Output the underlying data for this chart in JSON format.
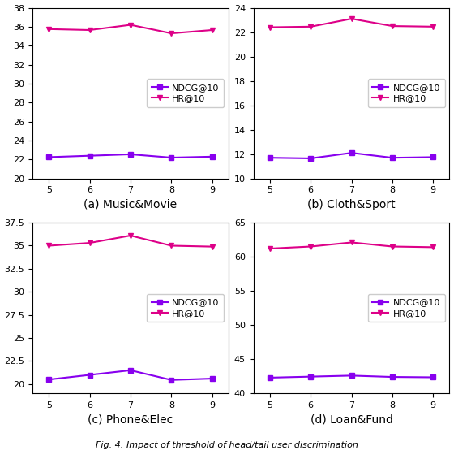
{
  "x": [
    5,
    6,
    7,
    8,
    9
  ],
  "panels": [
    {
      "title": "(a) Music&Movie",
      "ndcg": [
        22.25,
        22.4,
        22.55,
        22.2,
        22.3
      ],
      "hr": [
        35.75,
        35.65,
        36.2,
        35.3,
        35.65
      ],
      "ylim": [
        20,
        38
      ],
      "yticks": [
        20,
        22,
        24,
        26,
        28,
        30,
        32,
        34,
        36,
        38
      ]
    },
    {
      "title": "(b) Cloth&Sport",
      "ndcg": [
        11.7,
        11.65,
        12.1,
        11.7,
        11.75
      ],
      "hr": [
        22.4,
        22.45,
        23.1,
        22.5,
        22.45
      ],
      "ylim": [
        10,
        24
      ],
      "yticks": [
        10,
        12,
        14,
        16,
        18,
        20,
        22,
        24
      ]
    },
    {
      "title": "(c) Phone&Elec",
      "ndcg": [
        20.5,
        21.0,
        21.5,
        20.45,
        20.6
      ],
      "hr": [
        35.0,
        35.3,
        36.1,
        35.0,
        34.9
      ],
      "ylim": [
        19,
        37.5
      ],
      "yticks": [
        20.0,
        22.5,
        25.0,
        27.5,
        30.0,
        32.5,
        35.0,
        37.5
      ]
    },
    {
      "title": "(d) Loan&Fund",
      "ndcg": [
        42.3,
        42.45,
        42.6,
        42.4,
        42.35
      ],
      "hr": [
        61.2,
        61.5,
        62.1,
        61.5,
        61.4
      ],
      "ylim": [
        40,
        65
      ],
      "yticks": [
        40,
        45,
        50,
        55,
        60,
        65
      ]
    }
  ],
  "ndcg_color": "#8800ee",
  "hr_color": "#dd0088",
  "ndcg_marker": "s",
  "hr_marker": "v",
  "title_fontsize": 10,
  "legend_fontsize": 8,
  "tick_fontsize": 8,
  "fig_caption": "Fig. 4: Impact of threshold of head/tail user discrimination"
}
